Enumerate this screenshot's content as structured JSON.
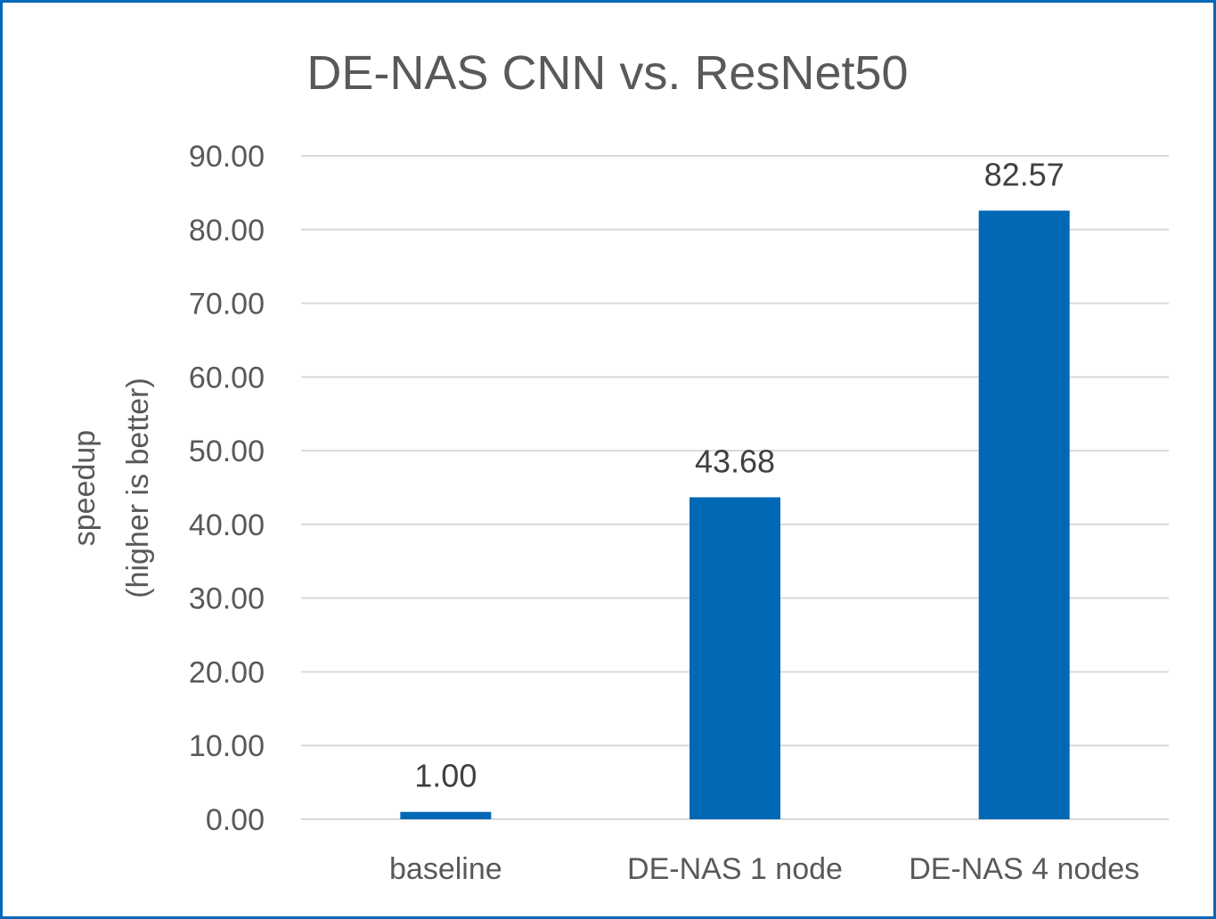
{
  "chart_data": {
    "type": "bar",
    "title": "DE-NAS CNN vs. ResNet50",
    "ylabel_lines": [
      "speedup",
      "(higher is better)"
    ],
    "xlabel": "",
    "categories": [
      "baseline",
      "DE-NAS 1 node",
      "DE-NAS 4 nodes"
    ],
    "values": [
      1.0,
      43.68,
      82.57
    ],
    "data_labels": [
      "1.00",
      "43.68",
      "82.57"
    ],
    "ylim": [
      0,
      90
    ],
    "yticks": [
      "0.00",
      "10.00",
      "20.00",
      "30.00",
      "40.00",
      "50.00",
      "60.00",
      "70.00",
      "80.00",
      "90.00"
    ],
    "grid": true,
    "legend": "none",
    "bar_color": "#0068B5",
    "border_color": "#0068B5"
  }
}
